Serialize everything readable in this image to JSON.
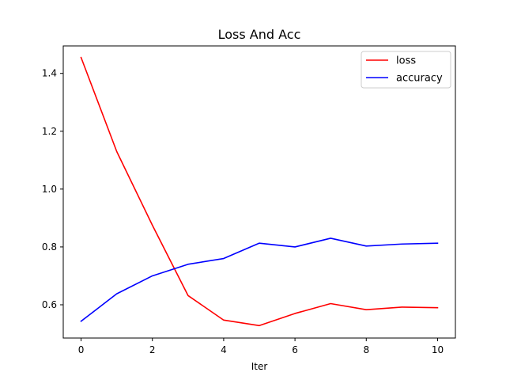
{
  "chart_data": {
    "type": "line",
    "title": "Loss And Acc",
    "xlabel": "Iter",
    "ylabel": "",
    "x": [
      0,
      1,
      2,
      3,
      4,
      5,
      6,
      7,
      8,
      9,
      10
    ],
    "xlim": [
      -0.5,
      10.5
    ],
    "ylim": [
      0.485,
      1.495
    ],
    "xticks": [
      0,
      2,
      4,
      6,
      8,
      10
    ],
    "yticks": [
      0.6,
      0.8,
      1.0,
      1.2,
      1.4
    ],
    "ytick_labels": [
      "0.6",
      "0.8",
      "1.0",
      "1.2",
      "1.4"
    ],
    "grid": false,
    "legend_position": "top-right",
    "series": [
      {
        "name": "loss",
        "color": "#ff0000",
        "values": [
          1.455,
          1.13,
          0.875,
          0.632,
          0.547,
          0.528,
          0.57,
          0.604,
          0.583,
          0.592,
          0.59
        ]
      },
      {
        "name": "accuracy",
        "color": "#0000ff",
        "values": [
          0.543,
          0.638,
          0.7,
          0.74,
          0.76,
          0.813,
          0.8,
          0.83,
          0.803,
          0.81,
          0.813
        ]
      }
    ]
  }
}
